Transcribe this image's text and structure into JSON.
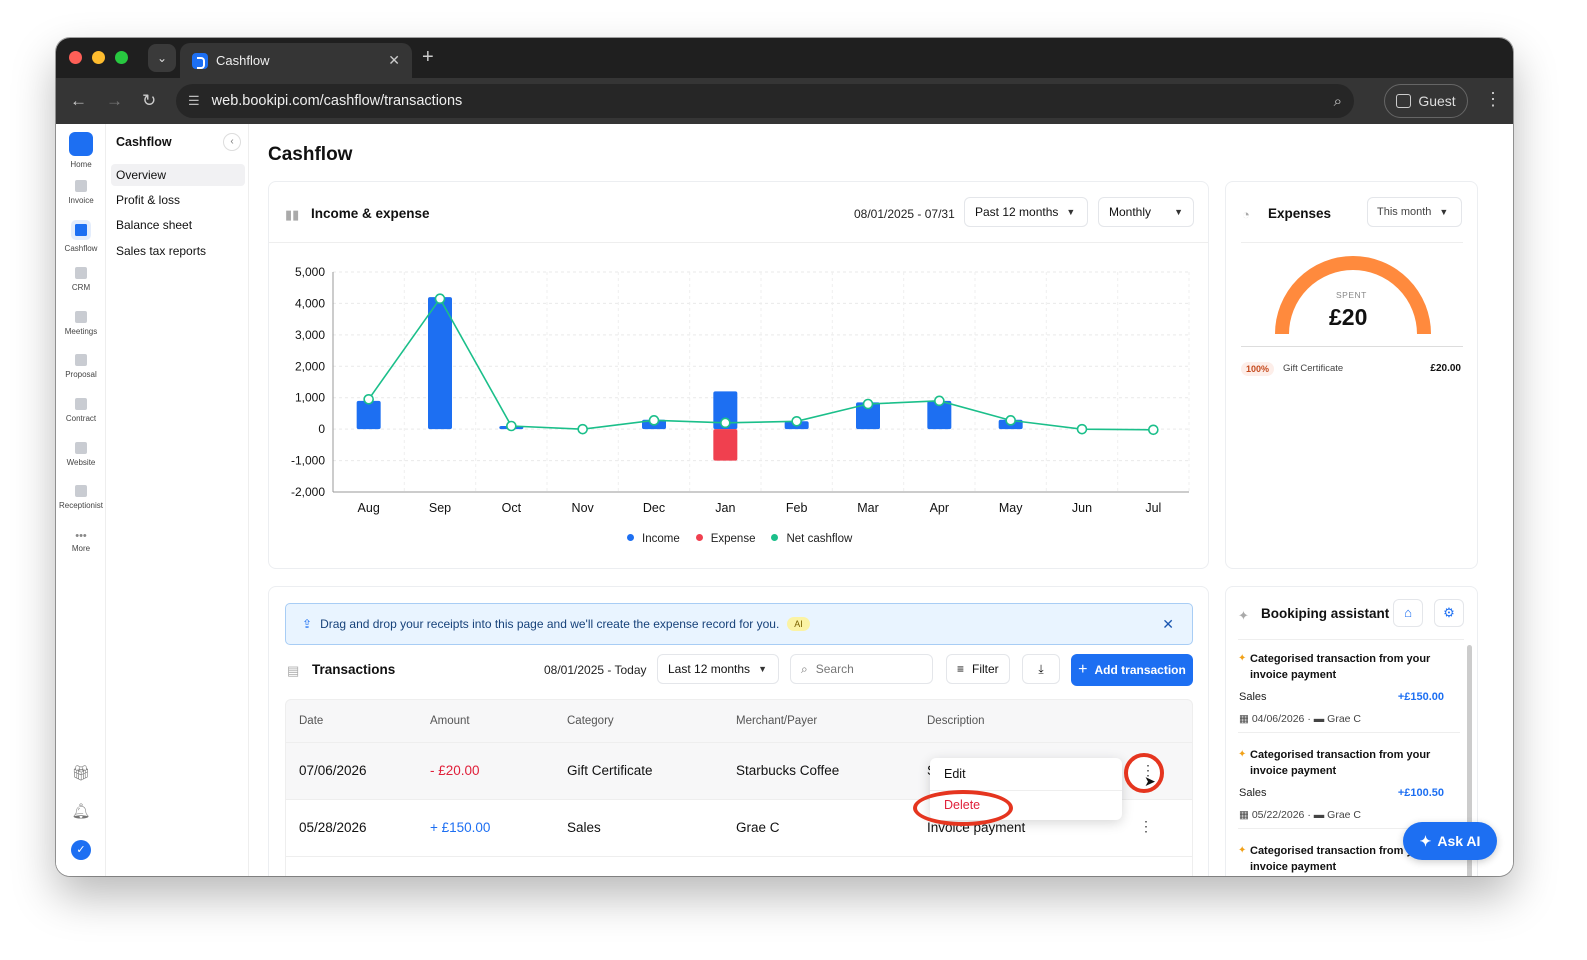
{
  "browser": {
    "tab_title": "Cashflow",
    "url": "web.bookipi.com/cashflow/transactions",
    "profile": "Guest"
  },
  "rail": {
    "items": [
      "Home",
      "Invoice",
      "Cashflow",
      "CRM",
      "Meetings",
      "Proposal",
      "Contract",
      "Website",
      "Receptionist",
      "More"
    ]
  },
  "sidebar": {
    "title": "Cashflow",
    "items": [
      "Overview",
      "Profit & loss",
      "Balance sheet",
      "Sales tax reports"
    ]
  },
  "page": {
    "title": "Cashflow"
  },
  "income_card": {
    "title": "Income & expense",
    "date_range": "08/01/2025 - 07/31",
    "period": "Past 12 months",
    "interval": "Monthly"
  },
  "chart_data": {
    "type": "bar",
    "categories": [
      "Aug",
      "Sep",
      "Oct",
      "Nov",
      "Dec",
      "Jan",
      "Feb",
      "Mar",
      "Apr",
      "May",
      "Jun",
      "Jul"
    ],
    "series": [
      {
        "name": "Income",
        "color": "#1d6ff2",
        "values": [
          900,
          4200,
          100,
          0,
          300,
          1200,
          250,
          850,
          900,
          300,
          0,
          0
        ]
      },
      {
        "name": "Expense",
        "color": "#f0404f",
        "values": [
          0,
          0,
          0,
          0,
          0,
          -1000,
          0,
          0,
          0,
          0,
          0,
          0
        ]
      },
      {
        "name": "Net cashflow",
        "color": "#1bbf8a",
        "type": "line",
        "values": [
          950,
          4150,
          100,
          0,
          280,
          200,
          250,
          800,
          900,
          280,
          0,
          -20
        ]
      }
    ],
    "yticks": [
      "5,000",
      "4,000",
      "3,000",
      "2,000",
      "1,000",
      "0",
      "-1,000",
      "-2,000"
    ],
    "ylim": [
      -2000,
      5000
    ],
    "grid": true,
    "legend": "bottom"
  },
  "expenses_card": {
    "title": "Expenses",
    "period": "This month",
    "spent_label": "SPENT",
    "spent_value": "£20",
    "spent_fraction": 1.0,
    "rows": [
      {
        "percent": "100%",
        "category": "Gift Certificate",
        "amount": "£20.00"
      }
    ]
  },
  "transactions": {
    "banner": "Drag and drop your receipts into this page and we'll create the expense record for you.",
    "banner_badge": "AI",
    "title": "Transactions",
    "date_range": "08/01/2025 - Today",
    "period": "Last 12 months",
    "search_placeholder": "Search",
    "filter_label": "Filter",
    "add_label": "Add transaction",
    "columns": [
      "Date",
      "Amount",
      "Category",
      "Merchant/Payer",
      "Description"
    ],
    "rows": [
      {
        "date": "07/06/2026",
        "amount": "- £20.00",
        "category": "Gift Certificate",
        "merchant": "Starbucks Coffee",
        "description": "S"
      },
      {
        "date": "05/28/2026",
        "amount": "+ £150.00",
        "category": "Sales",
        "merchant": "Grae C",
        "description": "Invoice payment"
      }
    ],
    "menu": {
      "edit": "Edit",
      "delete": "Delete"
    }
  },
  "assistant": {
    "title": "Bookiping assistant",
    "items": [
      {
        "title": "Categorised transaction from your invoice payment",
        "category": "Sales",
        "amount": "+£150.00",
        "date": "04/06/2026",
        "payer": "Grae C"
      },
      {
        "title": "Categorised transaction from your invoice payment",
        "category": "Sales",
        "amount": "+£100.50",
        "date": "05/22/2026",
        "payer": "Grae C"
      },
      {
        "title": "Categorised transaction from your invoice payment",
        "category": "",
        "amount": "",
        "date": "",
        "payer": ""
      }
    ],
    "ask_ai": "Ask AI"
  }
}
